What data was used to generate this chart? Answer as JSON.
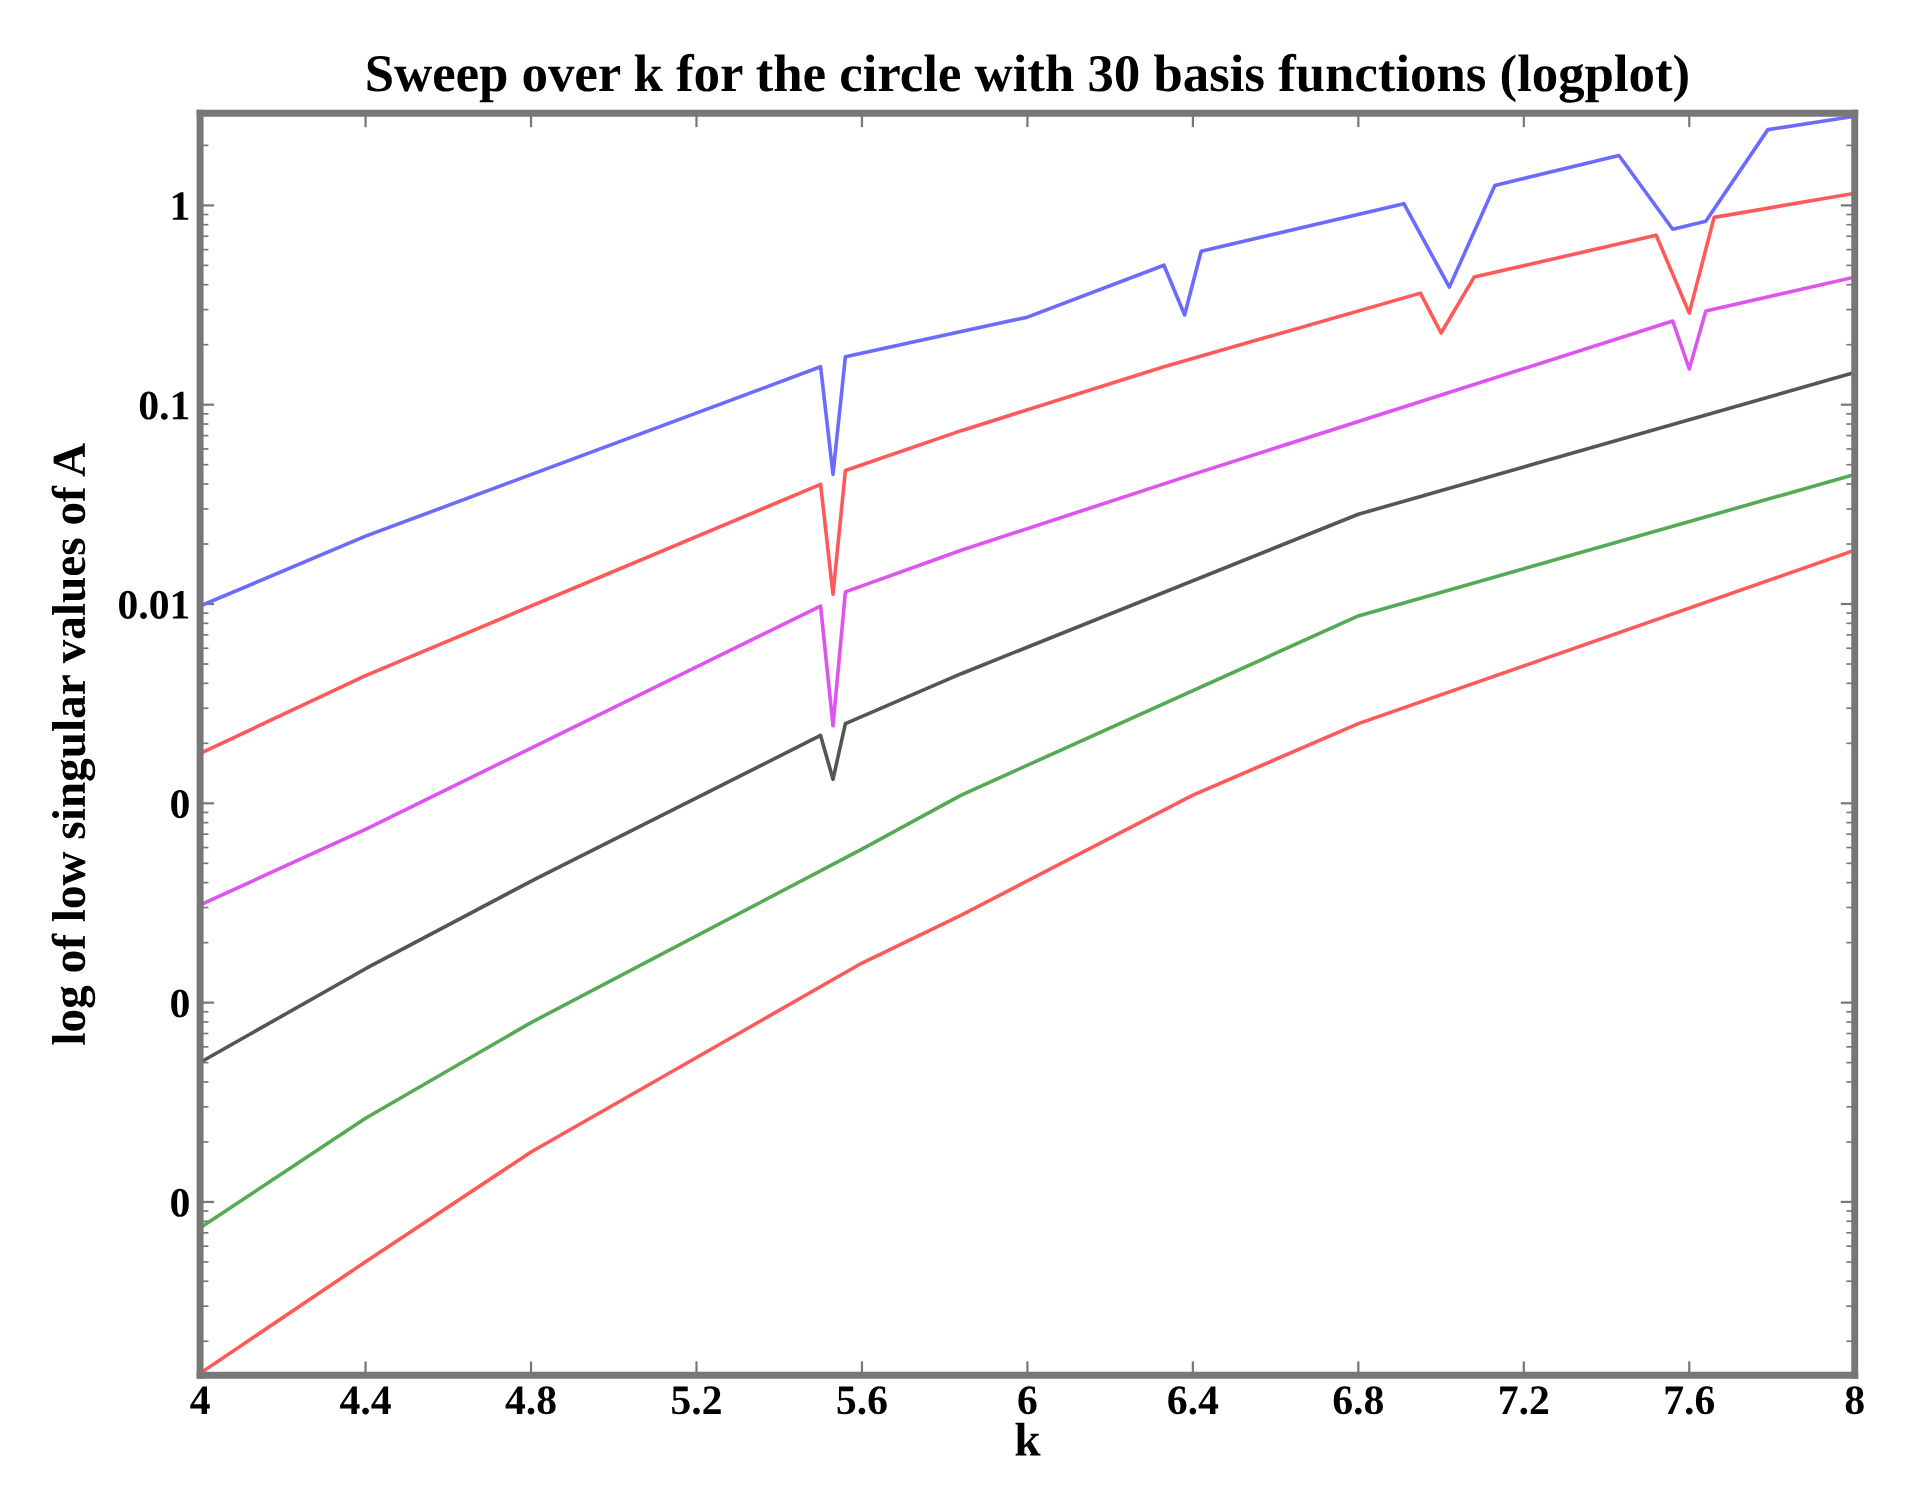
{
  "chart_data": {
    "type": "line",
    "title": "Sweep over k for the circle with 30 basis functions (logplot)",
    "xlabel": "k",
    "ylabel": "log of low singular values of A",
    "log": "y",
    "grid": false,
    "marker": "none",
    "line_style": "solid",
    "xlim": [
      4,
      8
    ],
    "ylim": [
      1.35e-06,
      2.9
    ],
    "xticks": [
      4,
      4.4,
      4.8,
      5.2,
      5.6,
      6,
      6.4,
      6.8,
      7.2,
      7.6,
      8
    ],
    "yticks": [
      {
        "value": 1e-05,
        "label": "0"
      },
      {
        "value": 0.0001,
        "label": "0"
      },
      {
        "value": 0.001,
        "label": "0"
      },
      0.01,
      0.1,
      1
    ],
    "series": [
      {
        "color": "#6b6bff",
        "x": [
          4,
          4.4,
          5.5,
          5.53,
          5.56,
          6,
          6.33,
          6.38,
          6.42,
          6.91,
          7.02,
          7.13,
          7.43,
          7.56,
          7.64,
          7.79,
          8
        ],
        "values": [
          0.00977,
          0.0219,
          0.155,
          0.0447,
          0.174,
          0.275,
          0.501,
          0.282,
          0.589,
          1.02,
          0.389,
          1.26,
          1.78,
          0.759,
          0.832,
          2.4,
          2.8
        ]
      },
      {
        "color": "#ff5a5a",
        "x": [
          4,
          4.4,
          5.5,
          5.53,
          5.56,
          5.84,
          6.33,
          6.95,
          7.0,
          7.08,
          7.52,
          7.6,
          7.66,
          8
        ],
        "values": [
          0.00178,
          0.00437,
          0.0398,
          0.0112,
          0.0468,
          0.0741,
          0.155,
          0.363,
          0.229,
          0.437,
          0.708,
          0.288,
          0.871,
          1.15
        ]
      },
      {
        "color": "#dd55ee",
        "x": [
          4,
          4.4,
          5.5,
          5.53,
          5.56,
          5.84,
          6.4,
          7.56,
          7.6,
          7.64,
          8
        ],
        "values": [
          0.000309,
          0.000741,
          0.00977,
          0.00245,
          0.0115,
          0.0186,
          0.0447,
          0.263,
          0.151,
          0.295,
          0.437
        ]
      },
      {
        "color": "#555555",
        "x": [
          4,
          4.4,
          4.81,
          5.5,
          5.53,
          5.56,
          5.84,
          6.8,
          8
        ],
        "values": [
          5.01e-05,
          0.000148,
          0.000417,
          0.00219,
          0.00132,
          0.00251,
          0.00447,
          0.0282,
          0.145
        ]
      },
      {
        "color": "#55aa55",
        "x": [
          4,
          4.4,
          4.8,
          5.6,
          5.84,
          6.8,
          8
        ],
        "values": [
          7.41e-06,
          2.63e-05,
          7.94e-05,
          0.000589,
          0.0011,
          0.00871,
          0.0447
        ]
      },
      {
        "color": "#ff5a5a",
        "x": [
          4,
          4.4,
          4.8,
          5.6,
          5.84,
          6.4,
          6.8,
          8
        ],
        "values": [
          1.38e-06,
          5.01e-06,
          1.78e-05,
          0.000158,
          0.000275,
          0.0011,
          0.00251,
          0.0186
        ]
      }
    ]
  }
}
